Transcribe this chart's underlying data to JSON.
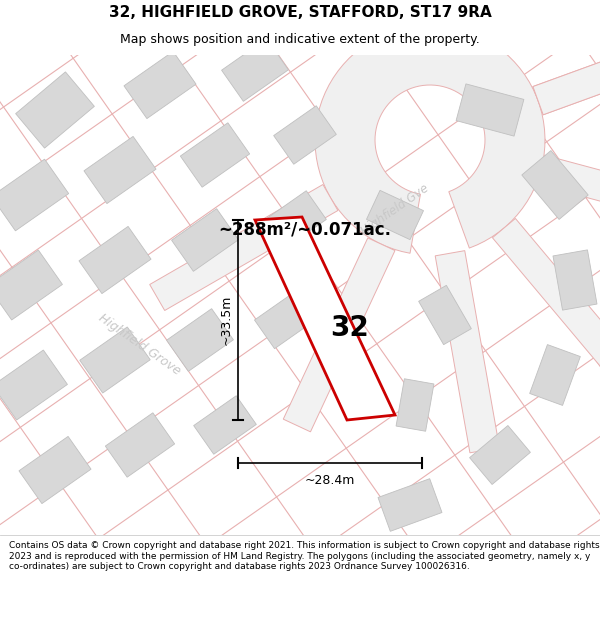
{
  "title": "32, HIGHFIELD GROVE, STAFFORD, ST17 9RA",
  "subtitle": "Map shows position and indicative extent of the property.",
  "area_text": "~288m²/~0.071ac.",
  "number_label": "32",
  "dim_width": "~28.4m",
  "dim_height": "~33.5m",
  "footer": "Contains OS data © Crown copyright and database right 2021. This information is subject to Crown copyright and database rights 2023 and is reproduced with the permission of HM Land Registry. The polygons (including the associated geometry, namely x, y co-ordinates) are subject to Crown copyright and database rights 2023 Ordnance Survey 100026316.",
  "bg_color": "#f7f7f7",
  "road_line_color": "#e8b0b0",
  "building_fill": "#d8d8d8",
  "building_edge": "#c0c0c0",
  "plot_color": "#cc0000",
  "street_label_color": "#c8c8c8",
  "street_label1": "Highfield Grove",
  "street_label2": "Highfield Gve",
  "title_fontsize": 11,
  "subtitle_fontsize": 9,
  "footer_fontsize": 6.5
}
